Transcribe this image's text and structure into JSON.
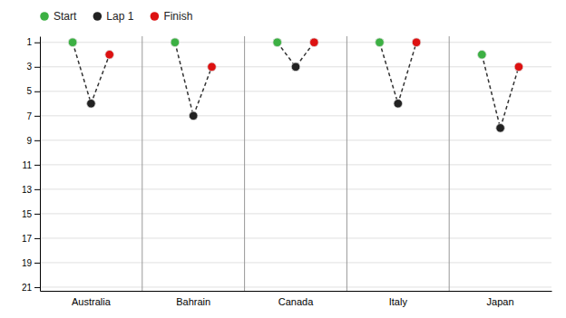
{
  "chart_data": {
    "type": "dot",
    "categories": [
      "Australia",
      "Bahrain",
      "Canada",
      "Italy",
      "Japan"
    ],
    "series": [
      {
        "name": "Start",
        "color": "#3cb043",
        "values": [
          1,
          1,
          1,
          1,
          2
        ]
      },
      {
        "name": "Lap 1",
        "color": "#222222",
        "values": [
          6,
          7,
          3,
          6,
          8
        ]
      },
      {
        "name": "Finish",
        "color": "#dd1111",
        "values": [
          2,
          3,
          1,
          1,
          3
        ]
      }
    ],
    "ylim": [
      21.3,
      0.5
    ],
    "yticks": [
      1,
      3,
      5,
      7,
      9,
      11,
      13,
      15,
      17,
      19,
      21
    ],
    "grid": true,
    "legend": "upper left",
    "marker": "circle",
    "line_style": "dashed"
  }
}
